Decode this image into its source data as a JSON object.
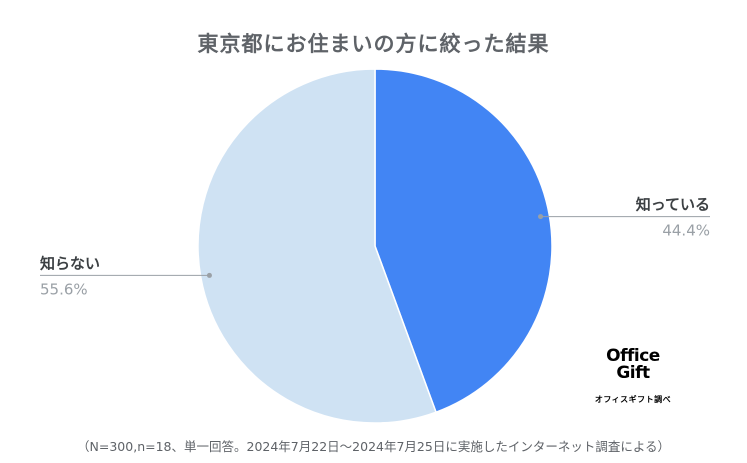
{
  "chart_data": {
    "type": "pie",
    "title": "東京都にお住まいの方に絞った結果",
    "slices": [
      {
        "label": "知っている",
        "value": 44.4,
        "value_label": "44.4%",
        "color": "#4285f4"
      },
      {
        "label": "知らない",
        "value": 55.6,
        "value_label": "55.6%",
        "color": "#cfe2f3"
      }
    ],
    "start_angle_deg": 0,
    "direction": "clockwise"
  },
  "logo": {
    "line1": "Office",
    "line2": "Gift",
    "line3": "オフィスギフト調べ"
  },
  "footnote": "（N=300,n=18、単一回答。2024年7月22日〜2024年7月25日に実施したインターネット調査による）"
}
